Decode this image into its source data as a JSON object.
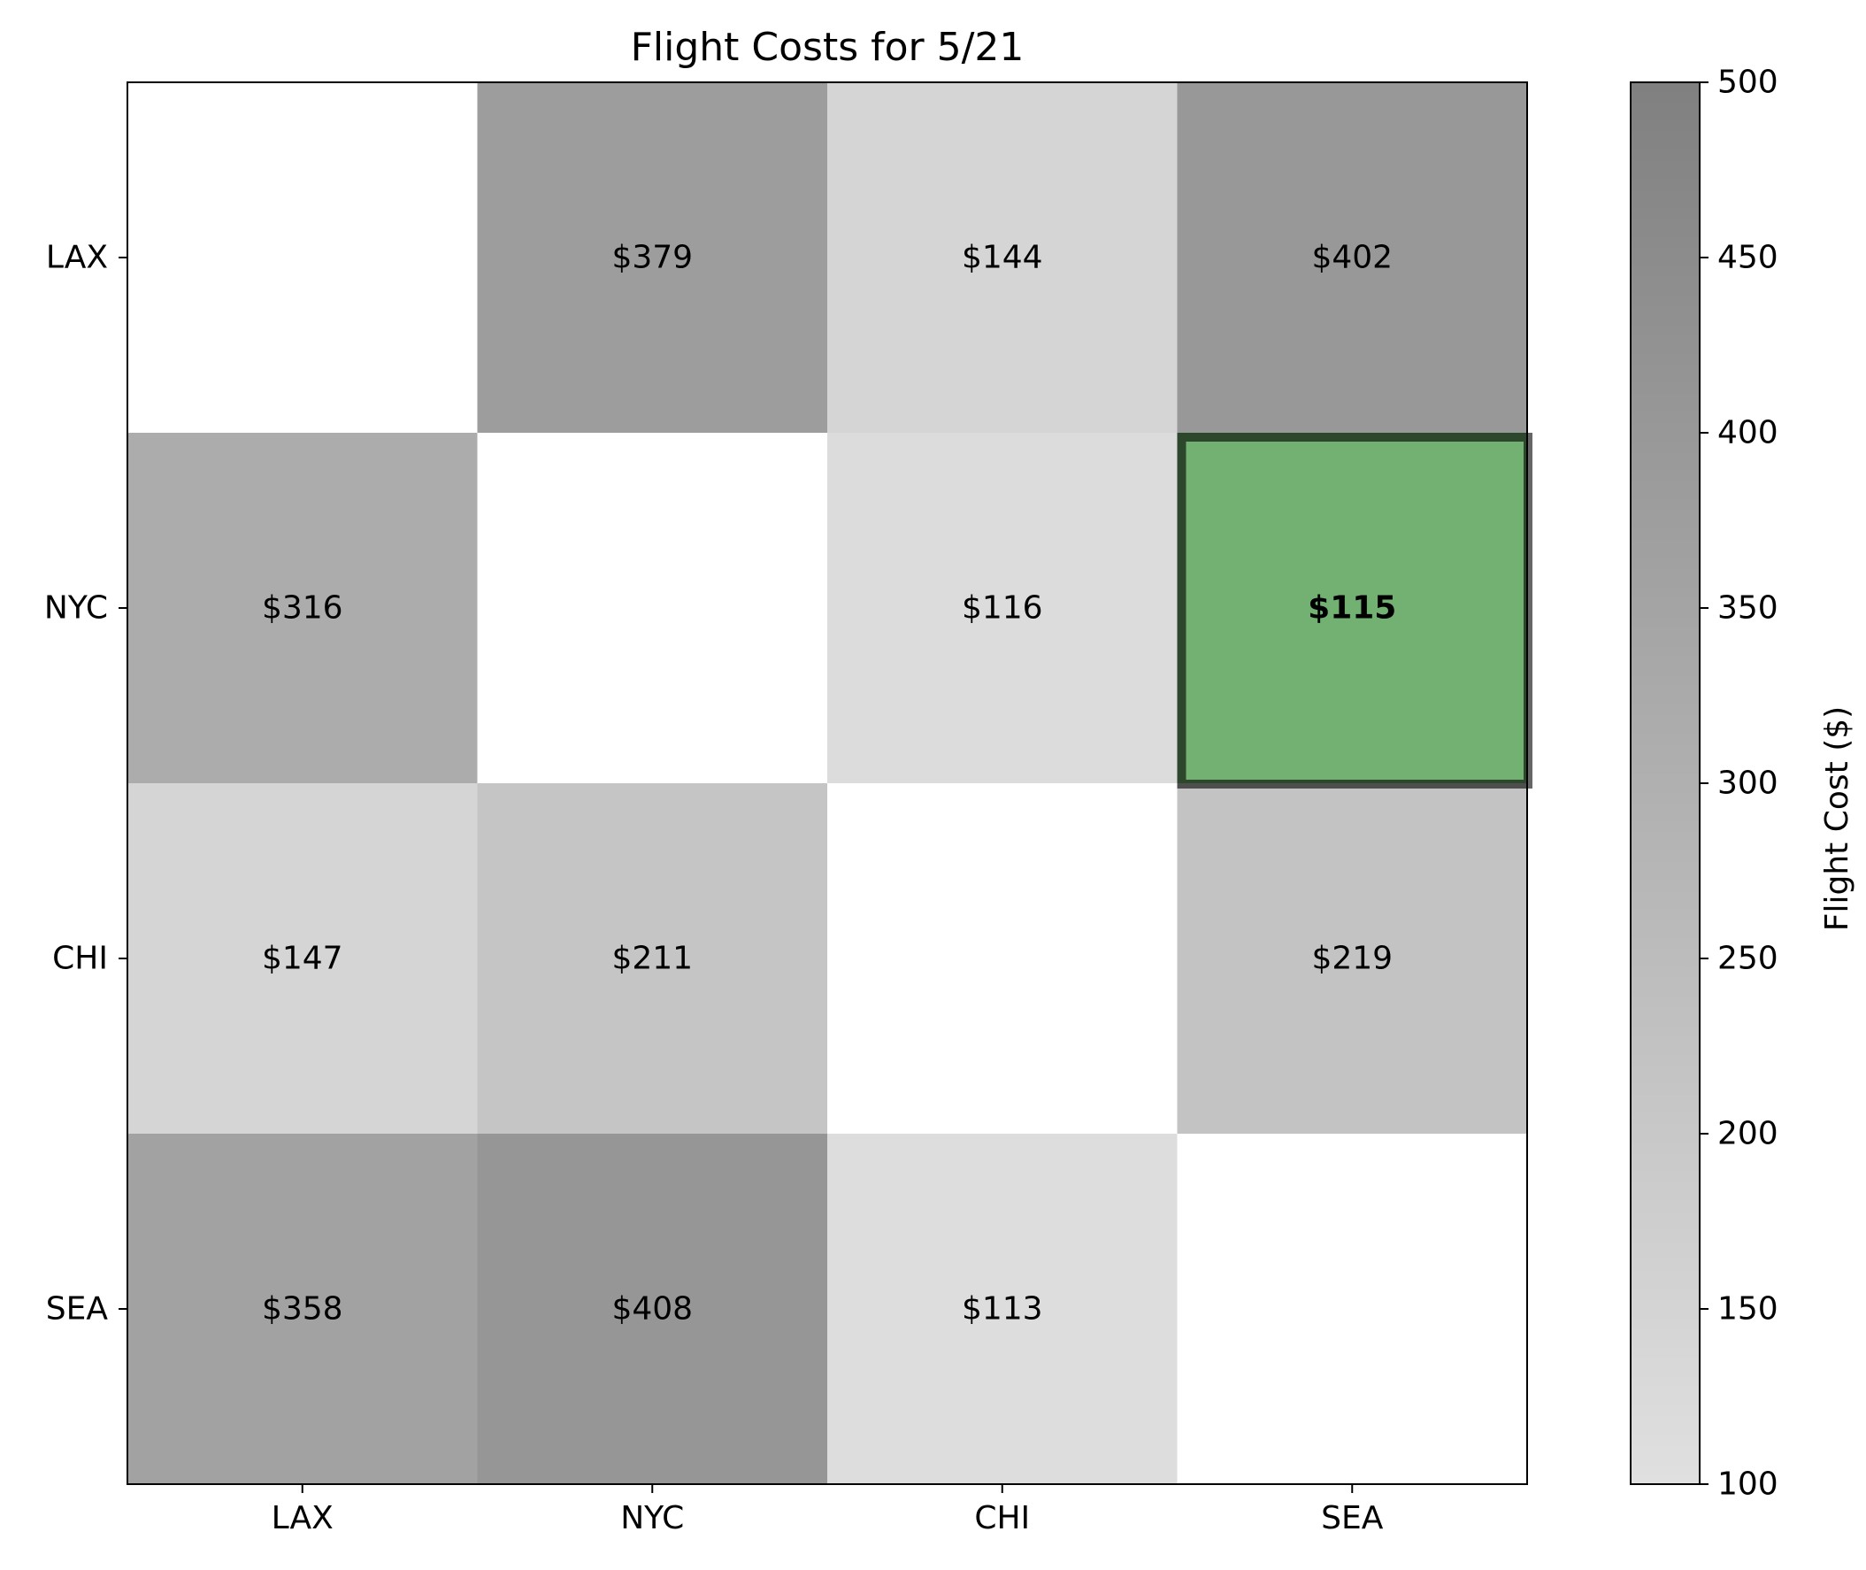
{
  "chart_data": {
    "type": "heatmap",
    "title": "Flight Costs for 5/21",
    "xlabel": "",
    "ylabel": "",
    "x_categories": [
      "LAX",
      "NYC",
      "CHI",
      "SEA"
    ],
    "y_categories": [
      "LAX",
      "NYC",
      "CHI",
      "SEA"
    ],
    "values": [
      [
        null,
        379,
        144,
        402
      ],
      [
        316,
        null,
        116,
        115
      ],
      [
        147,
        211,
        null,
        219
      ],
      [
        358,
        408,
        113,
        null
      ]
    ],
    "cell_labels": [
      [
        "",
        "$379",
        "$144",
        "$402"
      ],
      [
        "$316",
        "",
        "$116",
        "$115"
      ],
      [
        "$147",
        "$211",
        "",
        "$219"
      ],
      [
        "$358",
        "$408",
        "$113",
        ""
      ]
    ],
    "highlight": {
      "row": 1,
      "col": 3,
      "color": "#72b172",
      "label_bold": true
    },
    "colorbar": {
      "label": "Flight Cost ($)",
      "range": [
        100,
        500
      ],
      "ticks": [
        100,
        150,
        200,
        250,
        300,
        350,
        400,
        450,
        500
      ],
      "color_low": "#e0e0e0",
      "color_high": "#808080"
    },
    "grid": false
  }
}
